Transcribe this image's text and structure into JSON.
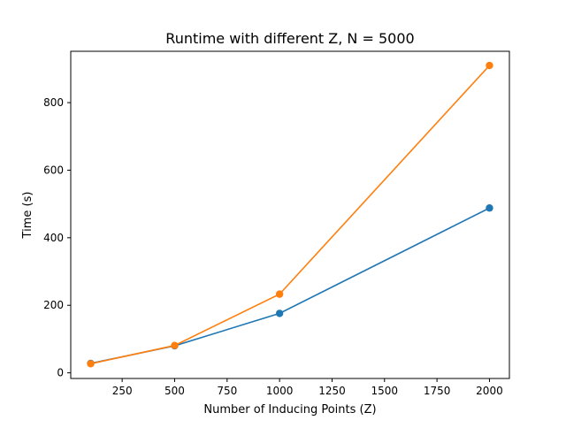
{
  "chart_data": {
    "type": "line",
    "title": "Runtime with different Z, N = 5000",
    "xlabel": "Number of Inducing Points (Z)",
    "ylabel": "Time (s)",
    "xlim": [
      5,
      2095
    ],
    "ylim": [
      -16.7,
      952
    ],
    "xticks": [
      250,
      500,
      750,
      1000,
      1250,
      1500,
      1750,
      2000
    ],
    "yticks": [
      0,
      200,
      400,
      600,
      800
    ],
    "grid": false,
    "series": [
      {
        "x": [
          100,
          500,
          1000,
          2000
        ],
        "y": [
          28,
          80,
          176,
          488
        ],
        "color": "#1f77b4",
        "marker": "circle"
      },
      {
        "x": [
          100,
          500,
          1000,
          2000
        ],
        "y": [
          27,
          81,
          233,
          910
        ],
        "color": "#ff7f0e",
        "marker": "circle"
      }
    ]
  }
}
